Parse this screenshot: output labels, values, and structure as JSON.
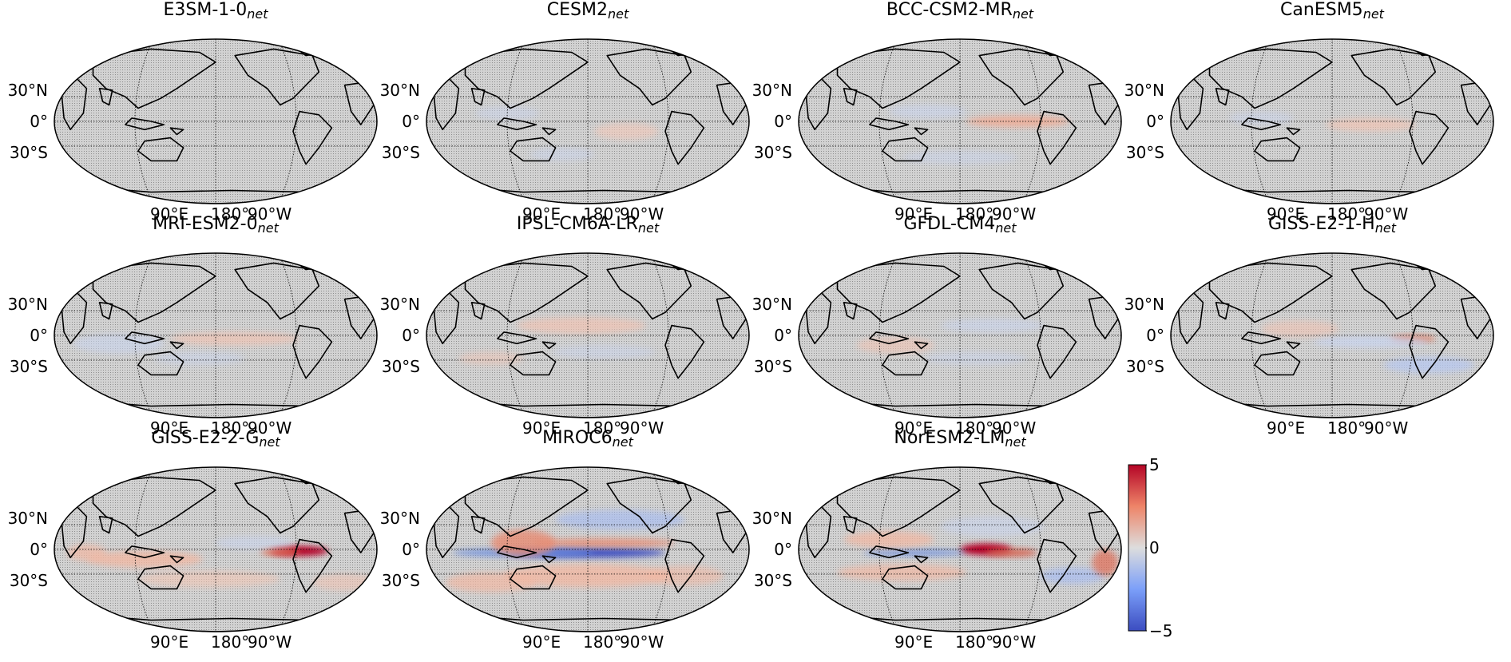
{
  "panels": [
    {
      "model": "E3SM-1-0",
      "subscript": "net",
      "pattern": "e3sm"
    },
    {
      "model": "CESM2",
      "subscript": "net",
      "pattern": "cesm2"
    },
    {
      "model": "BCC-CSM2-MR",
      "subscript": "net",
      "pattern": "bcc"
    },
    {
      "model": "CanESM5",
      "subscript": "net",
      "pattern": "canesm5"
    },
    {
      "model": "MRI-ESM2-0",
      "subscript": "net",
      "pattern": "mri"
    },
    {
      "model": "IPSL-CM6A-LR",
      "subscript": "net",
      "pattern": "ipsl"
    },
    {
      "model": "GFDL-CM4",
      "subscript": "net",
      "pattern": "gfdl"
    },
    {
      "model": "GISS-E2-1-H",
      "subscript": "net",
      "pattern": "gisse21h"
    },
    {
      "model": "GISS-E2-2-G",
      "subscript": "net",
      "pattern": "gisse22g"
    },
    {
      "model": "MIROC6",
      "subscript": "net",
      "pattern": "miroc6"
    },
    {
      "model": "NorESM2-LM",
      "subscript": "net",
      "pattern": "noresm"
    }
  ],
  "lat_labels": [
    "30°N",
    "0°",
    "30°S"
  ],
  "lon_labels": [
    "90°E",
    "180°",
    "90°W"
  ],
  "colorbar": {
    "ticks": [
      "5",
      "0",
      "−5"
    ],
    "min": -5,
    "max": 5,
    "colormap": "coolwarm",
    "colors": {
      "low": "#3b4cc0",
      "mid": "#dddddd",
      "high": "#b40426"
    }
  },
  "colors": {
    "stipple_gray": "#c8c8c8",
    "coast": "#000000",
    "grid": "#000000"
  },
  "projection": "Robinson",
  "central_longitude": "180°"
}
